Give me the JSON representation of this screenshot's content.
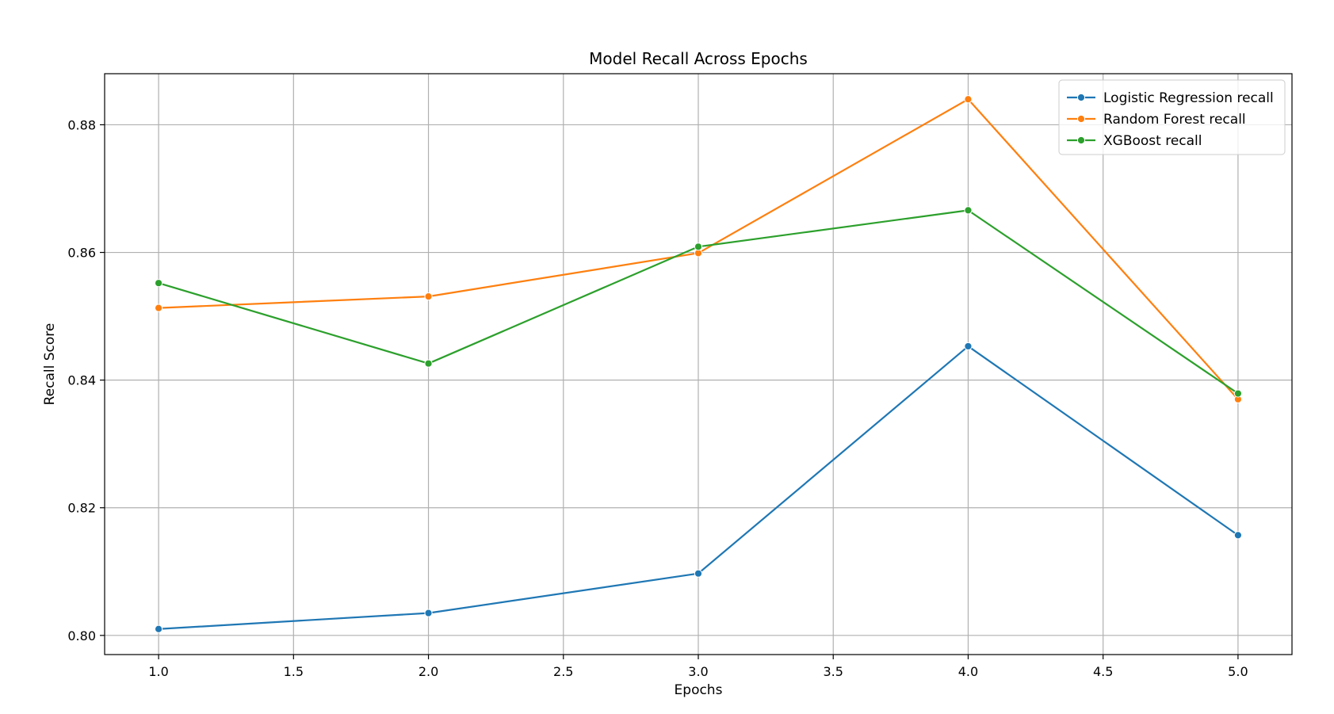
{
  "chart_data": {
    "type": "line",
    "title": "Model Recall Across Epochs",
    "xlabel": "Epochs",
    "ylabel": "Recall Score",
    "x": [
      1,
      2,
      3,
      4,
      5
    ],
    "xlim": [
      0.8,
      5.2
    ],
    "ylim": [
      0.797,
      0.888
    ],
    "x_ticks": [
      1.0,
      1.5,
      2.0,
      2.5,
      3.0,
      3.5,
      4.0,
      4.5,
      5.0
    ],
    "x_tick_labels": [
      "1.0",
      "1.5",
      "2.0",
      "2.5",
      "3.0",
      "3.5",
      "4.0",
      "4.5",
      "5.0"
    ],
    "y_ticks": [
      0.8,
      0.82,
      0.84,
      0.86,
      0.88
    ],
    "y_tick_labels": [
      "0.80",
      "0.82",
      "0.84",
      "0.86",
      "0.88"
    ],
    "grid": true,
    "legend_position": "top-right",
    "series": [
      {
        "name": "Logistic Regression recall",
        "color": "#1f77b4",
        "marker": "circle",
        "values": [
          0.801,
          0.8035,
          0.8097,
          0.8453,
          0.8157
        ]
      },
      {
        "name": "Random Forest recall",
        "color": "#ff7f0e",
        "marker": "circle",
        "values": [
          0.8513,
          0.8531,
          0.8599,
          0.884,
          0.837
        ]
      },
      {
        "name": "XGBoost recall",
        "color": "#2ca02c",
        "marker": "circle",
        "values": [
          0.8552,
          0.8426,
          0.8609,
          0.8666,
          0.8379
        ]
      }
    ]
  }
}
